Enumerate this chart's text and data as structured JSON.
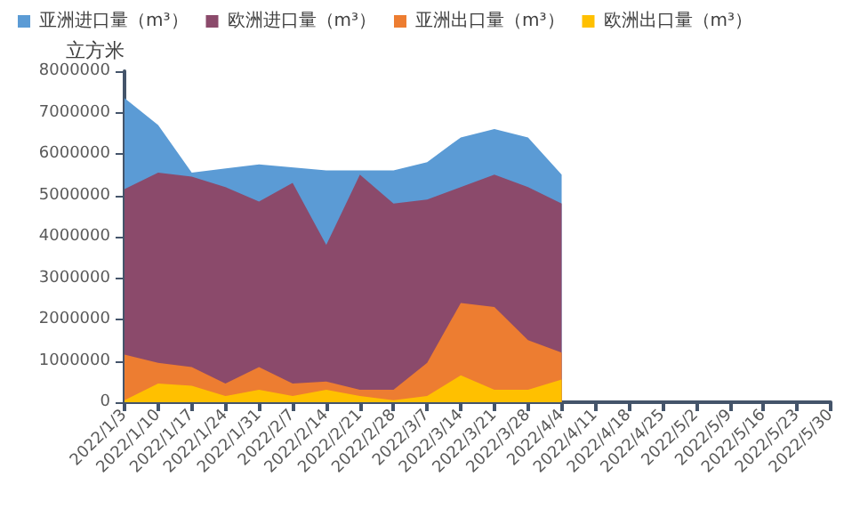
{
  "chart_data": {
    "type": "area",
    "ylabel": "立方米",
    "categories": [
      "2022/1/3",
      "2022/1/10",
      "2022/1/17",
      "2022/1/24",
      "2022/1/31",
      "2022/2/7",
      "2022/2/14",
      "2022/2/21",
      "2022/2/28",
      "2022/3/7",
      "2022/3/14",
      "2022/3/21",
      "2022/3/28",
      "2022/4/4",
      "2022/4/11",
      "2022/4/18",
      "2022/4/25",
      "2022/5/2",
      "2022/5/9",
      "2022/5/16",
      "2022/5/23",
      "2022/5/30"
    ],
    "series": [
      {
        "name": "亚洲进口量（m³）",
        "color": "#5b9bd5",
        "values": [
          7350000,
          6700000,
          5550000,
          null,
          5750000,
          null,
          5600000,
          null,
          5600000,
          5800000,
          6400000,
          6600000,
          6400000,
          5500000,
          null,
          null,
          null,
          null,
          null,
          null,
          null,
          null
        ]
      },
      {
        "name": "欧洲进口量（m³）",
        "color": "#8b4a6b",
        "values": [
          5150000,
          5550000,
          5450000,
          5200000,
          4850000,
          5300000,
          3800000,
          5500000,
          4800000,
          4900000,
          5200000,
          5500000,
          5200000,
          4800000,
          null,
          null,
          null,
          null,
          null,
          null,
          null,
          null
        ]
      },
      {
        "name": "亚洲出口量（m³）",
        "color": "#ed7d31",
        "values": [
          1150000,
          950000,
          850000,
          450000,
          850000,
          450000,
          500000,
          300000,
          300000,
          950000,
          2400000,
          2300000,
          1500000,
          1200000,
          null,
          null,
          null,
          null,
          null,
          null,
          null,
          null
        ]
      },
      {
        "name": "欧洲出口量（m³）",
        "color": "#ffc000",
        "values": [
          50000,
          450000,
          400000,
          150000,
          300000,
          150000,
          300000,
          150000,
          50000,
          150000,
          650000,
          300000,
          300000,
          550000,
          null,
          null,
          null,
          null,
          null,
          null,
          null,
          null
        ]
      }
    ],
    "ylim": [
      0,
      8000000
    ],
    "yticks": [
      0,
      1000000,
      2000000,
      3000000,
      4000000,
      5000000,
      6000000,
      7000000,
      8000000
    ],
    "grid": false,
    "legend": "top left",
    "marker": "none"
  }
}
